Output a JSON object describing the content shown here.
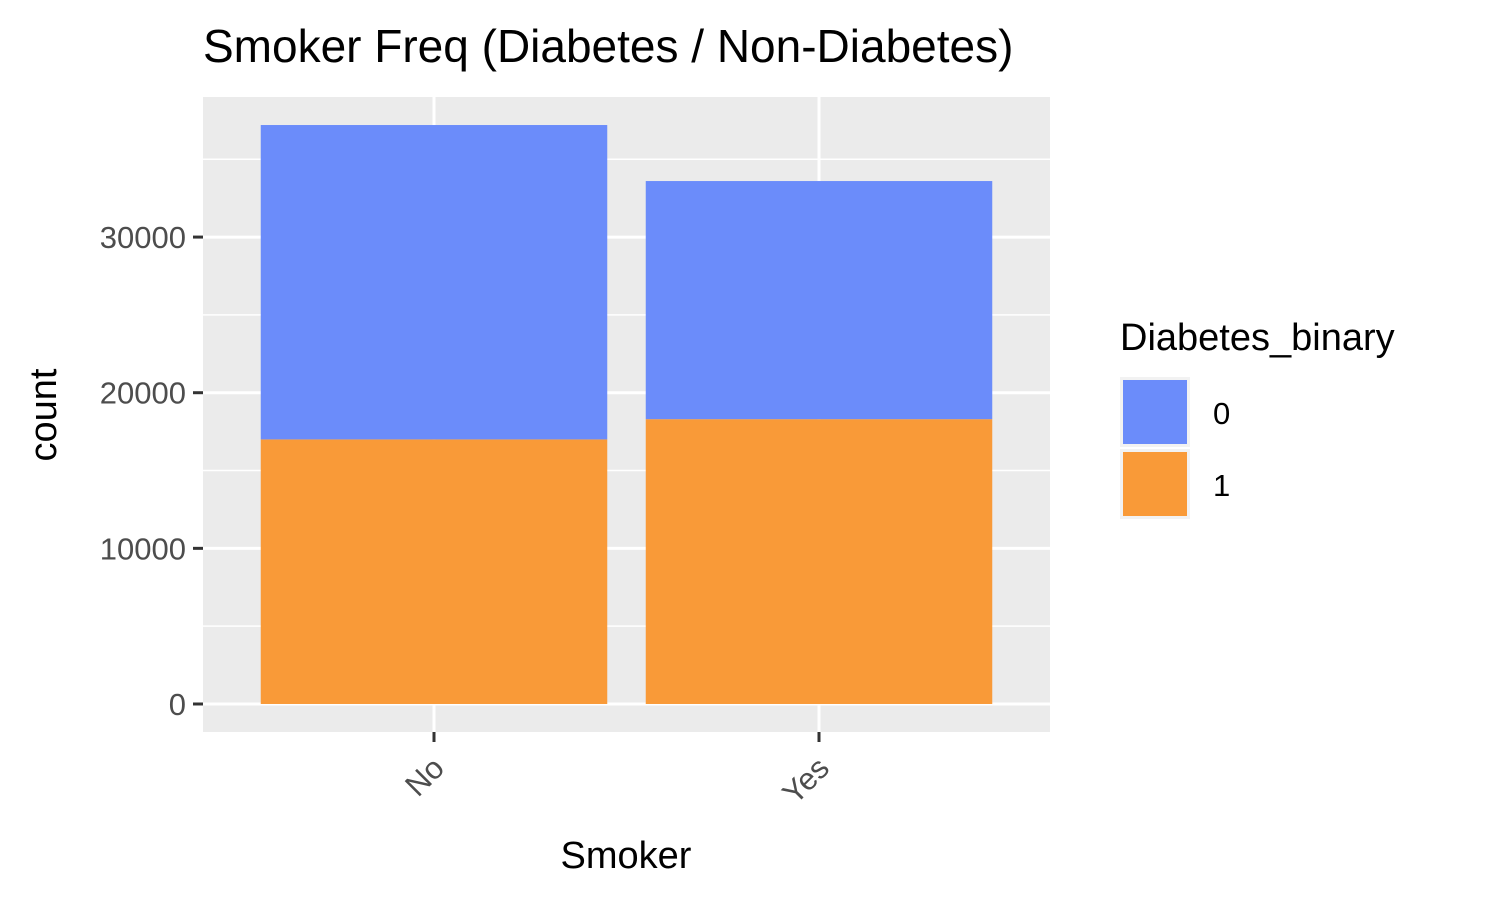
{
  "chart_data": {
    "type": "bar",
    "stacked": true,
    "title": "Smoker Freq (Diabetes / Non-Diabetes)",
    "xlabel": "Smoker",
    "ylabel": "count",
    "categories": [
      "No",
      "Yes"
    ],
    "series": [
      {
        "name": "0",
        "color": "#6b8cfa",
        "values": [
          20200,
          15300
        ]
      },
      {
        "name": "1",
        "color": "#f99a38",
        "values": [
          17000,
          18300
        ]
      }
    ],
    "y_ticks": [
      0,
      10000,
      20000,
      30000
    ],
    "y_tick_labels": [
      "0",
      "10000",
      "20000",
      "30000"
    ],
    "ylim": [
      -1800,
      39000
    ],
    "x_tick_rotation_deg": -45,
    "legend": {
      "title": "Diabetes_binary",
      "position": "right"
    },
    "panel_background": "#ebebeb",
    "grid": true
  }
}
